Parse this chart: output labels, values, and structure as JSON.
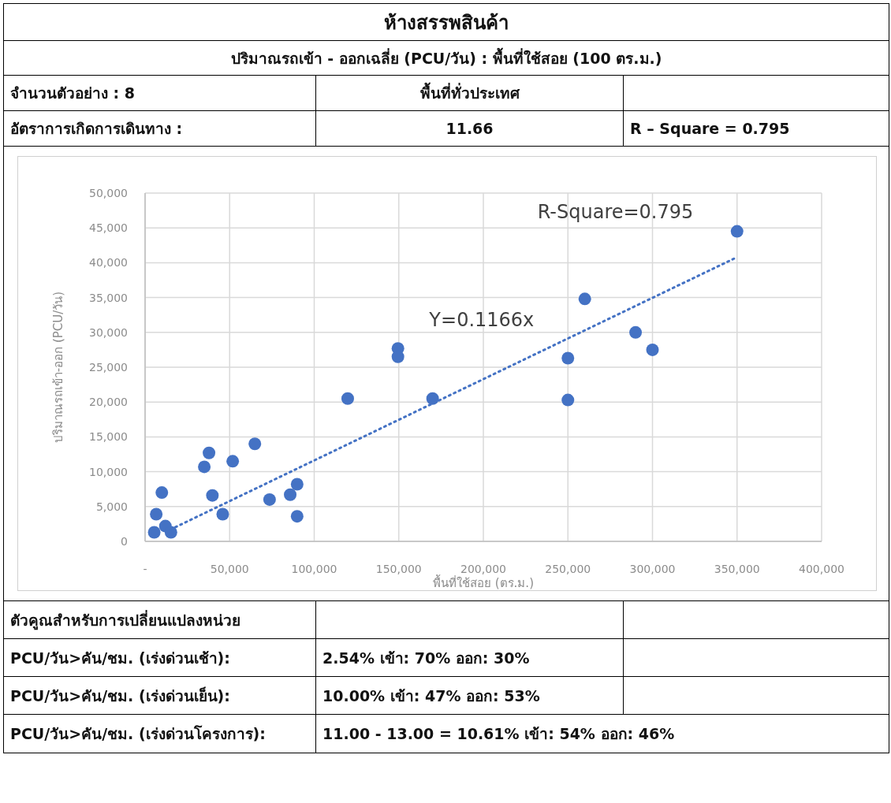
{
  "chart_data": {
    "type": "scatter",
    "title": "ห้างสรรพสินค้า",
    "subtitle": "ปริมาณรถเข้า - ออกเฉลี่ย (PCU/วัน) : พื้นที่ใช้สอย (100 ตร.ม.)",
    "xlabel": "พื้นที่ใช้สอย (ตร.ม.)",
    "ylabel": "ปริมาณรถเข้า-ออก (PCU/วัน)",
    "annotations": [
      "R-Square=0.795",
      "Y=0.1166x",
      "จำนวนตัวอย่าง : 8",
      "พื้นที่ทั่วประเทศ",
      "อัตราการเกิดการเดินทาง :",
      "11.66",
      "R – Square = 0.795",
      "ตัวคูณสำหรับการเปลี่ยนแปลงหน่วย",
      "PCU/วัน>คัน/ชม. (เร่งด่วนเช้า):",
      "2.54%  เข้า: 70%  ออก: 30%",
      "PCU/วัน>คัน/ชม. (เร่งด่วนเย็น):",
      "10.00%  เข้า: 47%  ออก: 53%",
      "PCU/วัน>คัน/ชม. (เร่งด่วนโครงการ):",
      "11.00 - 13.00 = 10.61%  เข้า: 54%  ออก: 46%"
    ],
    "xlim": [
      0,
      400000
    ],
    "ylim": [
      0,
      50000
    ],
    "xticks": [
      {
        "value": 0,
        "label": "-"
      },
      {
        "value": 50000,
        "label": "50,000"
      },
      {
        "value": 100000,
        "label": "100,000"
      },
      {
        "value": 150000,
        "label": "150,000"
      },
      {
        "value": 200000,
        "label": "200,000"
      },
      {
        "value": 250000,
        "label": "250,000"
      },
      {
        "value": 300000,
        "label": "300,000"
      },
      {
        "value": 350000,
        "label": "350,000"
      },
      {
        "value": 400000,
        "label": "400,000"
      }
    ],
    "yticks": [
      0,
      {
        "value": 5000,
        "label": "5,000"
      },
      {
        "value": 10000,
        "label": "10,000"
      },
      {
        "value": 15000,
        "label": "15,000"
      },
      {
        "value": 20000,
        "label": "20,000"
      },
      {
        "value": 25000,
        "label": "25,000"
      },
      {
        "value": 30000,
        "label": "30,000"
      },
      {
        "value": 35000,
        "label": "35,000"
      },
      {
        "value": 40000,
        "label": "40,000"
      },
      {
        "value": 45000,
        "label": "45,000"
      },
      {
        "value": 50000,
        "label": "50,000"
      }
    ],
    "grid": true,
    "series": [
      {
        "type": "scatter",
        "marker": "circle",
        "color": "#4472c4",
        "x": [
          5400,
          6600,
          9900,
          12000,
          15300,
          35000,
          37800,
          39800,
          45900,
          51800,
          64900,
          73600,
          85800,
          89900,
          89900,
          119800,
          149500,
          149500,
          170000,
          260000,
          250000,
          250000,
          290000,
          300000,
          350000
        ],
        "values": [
          1300,
          3900,
          7000,
          2200,
          1300,
          10700,
          12700,
          6600,
          3900,
          11500,
          14000,
          6000,
          6700,
          8200,
          3600,
          20500,
          27700,
          26500,
          20500,
          34800,
          26300,
          20300,
          30000,
          27500,
          44500
        ]
      },
      {
        "type": "line",
        "line_style": "dotted",
        "color": "#4472c4",
        "x": [
          15000,
          350000
        ],
        "values": [
          1700,
          40800
        ]
      }
    ]
  }
}
